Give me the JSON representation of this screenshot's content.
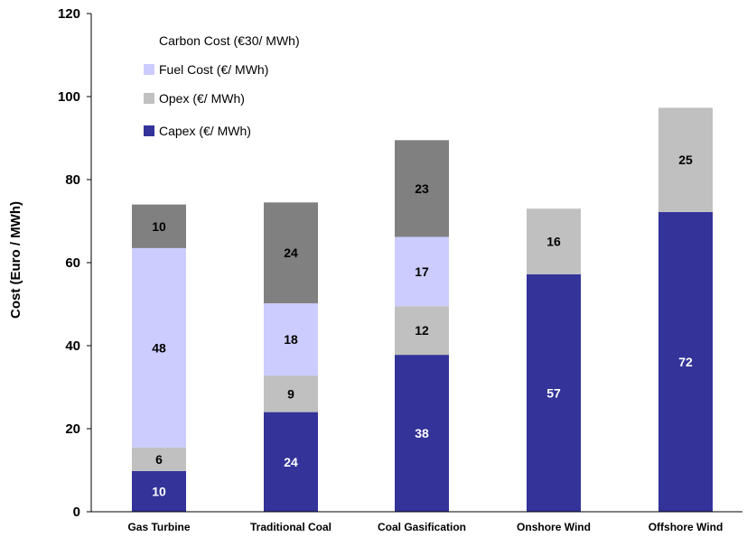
{
  "chart_data": {
    "type": "bar",
    "stacked": true,
    "categories": [
      "Gas Turbine",
      "Traditional Coal",
      "Coal Gasification",
      "Onshore Wind",
      "Offshore Wind"
    ],
    "series": [
      {
        "name": "Capex (€/ MWh)",
        "color": "#333399",
        "label_color": "#ffffff",
        "values": [
          10,
          24,
          38,
          57,
          72
        ]
      },
      {
        "name": "Opex (€/ MWh)",
        "color": "#c0c0c0",
        "label_color": "#000000",
        "values": [
          6,
          9,
          12,
          16,
          25
        ]
      },
      {
        "name": "Fuel Cost (€/ MWh)",
        "color": "#ccccff",
        "label_color": "#000000",
        "values": [
          48,
          18,
          17,
          null,
          null
        ]
      },
      {
        "name": "Carbon Cost (€30/ MWh)",
        "color": "#808080",
        "label_color": "#000000",
        "values": [
          10,
          24,
          23,
          null,
          null
        ]
      }
    ],
    "totals": [
      74,
      74.5,
      89.5,
      73,
      97.3
    ],
    "bar_tops": {
      "Gas Turbine": [
        9.8,
        15.5,
        63.5,
        74
      ],
      "Traditional Coal": [
        24,
        32.8,
        50.2,
        74.5
      ],
      "Coal Gasification": [
        37.8,
        49.5,
        66.2,
        89.5
      ],
      "Onshore Wind": [
        57.2,
        73
      ],
      "Offshore Wind": [
        72.2,
        97.3
      ]
    },
    "xlabel": "",
    "ylabel": "Cost (Euro / MWh)",
    "ylim": [
      0,
      120
    ],
    "yticks": [
      0,
      20,
      40,
      60,
      80,
      100,
      120
    ],
    "grid": false,
    "legend": {
      "placement": "top-left",
      "order": [
        "Carbon Cost (€30/ MWh)",
        "Fuel Cost (€/ MWh)",
        "Opex (€/ MWh)",
        "Capex (€/ MWh)"
      ],
      "carbon_swatch_visible": false
    }
  }
}
